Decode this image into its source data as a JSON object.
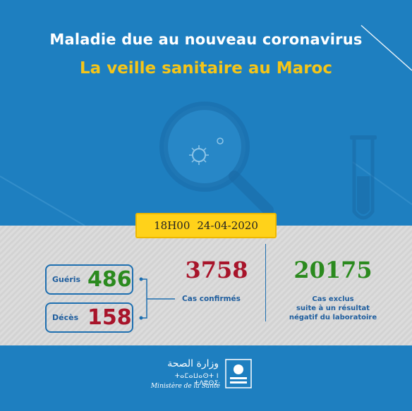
{
  "header": {
    "title": "Maladie due au nouveau coronavirus",
    "subtitle": "La veille sanitaire au Maroc"
  },
  "date_box": {
    "time": "18H00",
    "date": "24-04-2020"
  },
  "stats": {
    "gueris": {
      "label": "Guéris",
      "value": "486"
    },
    "deces": {
      "label": "Décès",
      "value": "158"
    },
    "confirmes": {
      "label": "Cas confirmés",
      "value": "3758"
    },
    "exclus": {
      "label_line1": "Cas exclus",
      "label_line2": "suite à un résultat",
      "label_line3": "négatif du laboratoire",
      "value": "20175"
    }
  },
  "footer": {
    "arabic": "وزارة الصحة",
    "tifinagh": "ⵜⴰⵎⴰⵡⴰⵙⵜ ⵏ ⵜⴷⵓⵙⵉ",
    "french": "Ministère de la Santé"
  },
  "colors": {
    "background": "#1e7fc0",
    "accent_yellow": "#f5c518",
    "green": "#2b8a1e",
    "red": "#a8142a",
    "label_blue": "#1f5e9e"
  },
  "icons": [
    "magnifier-icon",
    "virus-icon",
    "test-tube-icon",
    "ministry-logo-icon"
  ]
}
